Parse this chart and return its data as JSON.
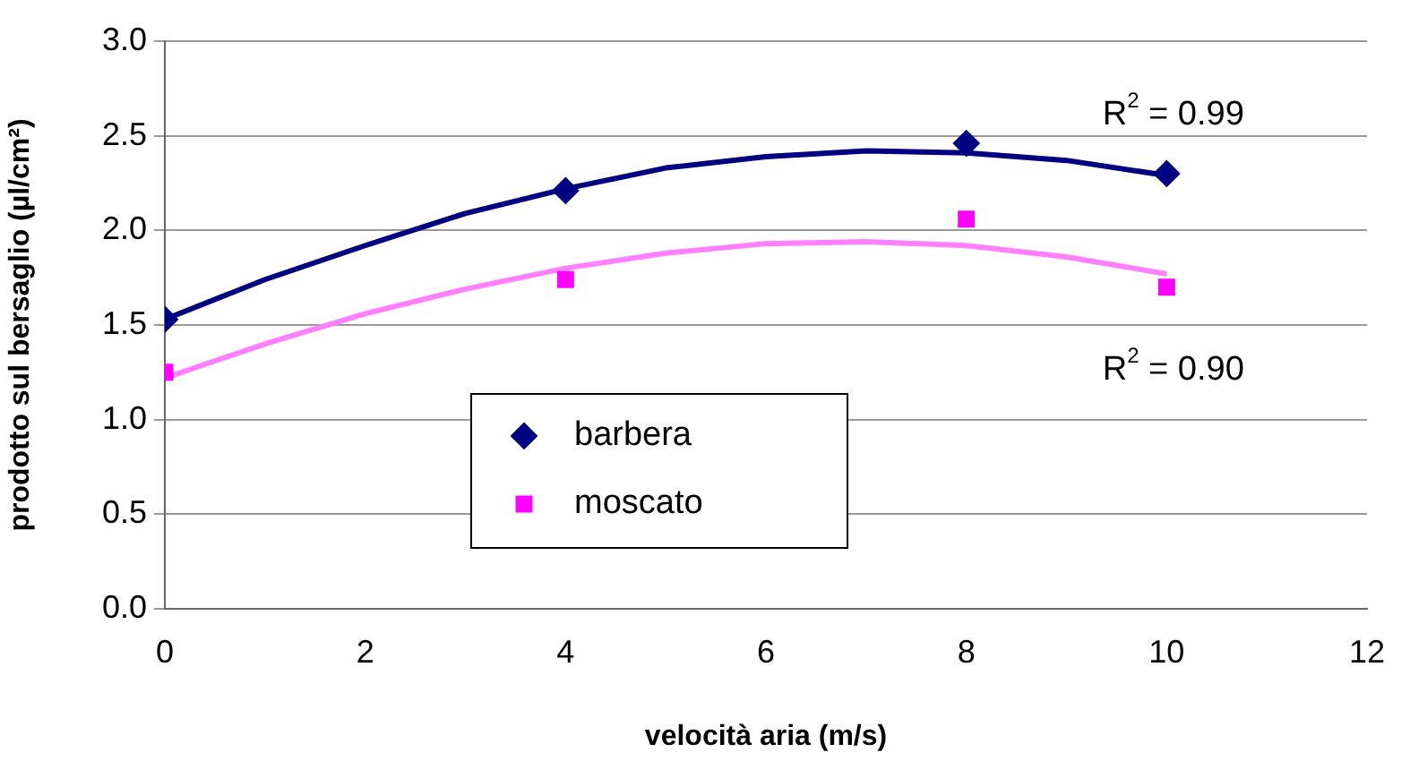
{
  "chart_data": {
    "type": "scatter",
    "xlabel": "velocità aria (m/s)",
    "ylabel": "prodotto sul bersaglio (µl/cm²)",
    "xlim": [
      0,
      12
    ],
    "xticks": [
      0,
      2,
      4,
      6,
      8,
      10,
      12
    ],
    "ylim": [
      0,
      3
    ],
    "yticks": [
      {
        "value": 0,
        "label": "0.0"
      },
      {
        "value": 0.5,
        "label": "0.5"
      },
      {
        "value": 1,
        "label": "1.0"
      },
      {
        "value": 1.5,
        "label": "1.5"
      },
      {
        "value": 2,
        "label": "2.0"
      },
      {
        "value": 2.5,
        "label": "2.5"
      },
      {
        "value": 3,
        "label": "3.0"
      }
    ],
    "grid": "y",
    "legend": "bottom",
    "series": [
      {
        "type": "line",
        "color": "#000080",
        "marker": "none",
        "line_style": "solid",
        "x": [
          0,
          1,
          2,
          3,
          4,
          5,
          6,
          7,
          8,
          9,
          10
        ],
        "values": [
          1.53,
          1.74,
          1.92,
          2.09,
          2.22,
          2.33,
          2.39,
          2.42,
          2.41,
          2.37,
          2.29
        ]
      },
      {
        "type": "line",
        "color": "#ff80ff",
        "marker": "none",
        "line_style": "solid",
        "x": [
          0,
          1,
          2,
          3,
          4,
          5,
          6,
          7,
          8,
          9,
          10
        ],
        "values": [
          1.22,
          1.4,
          1.56,
          1.69,
          1.8,
          1.88,
          1.93,
          1.94,
          1.92,
          1.86,
          1.77
        ]
      },
      {
        "name": "barbera",
        "color": "#000080",
        "marker": "diamond",
        "x": [
          0,
          4,
          8,
          10
        ],
        "values": [
          1.53,
          2.21,
          2.46,
          2.3
        ]
      },
      {
        "name": "moscato",
        "color": "#ff00ff",
        "marker": "square",
        "x": [
          0,
          4,
          8,
          10
        ],
        "values": [
          1.25,
          1.74,
          2.06,
          1.7
        ]
      }
    ],
    "annotations": [
      "R$^{2}$ = 0.99",
      "R$^{2}$ = 0.90"
    ]
  }
}
